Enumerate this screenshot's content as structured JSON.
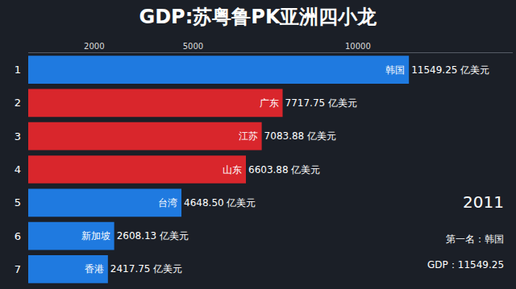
{
  "chart_data": {
    "type": "bar",
    "orientation": "horizontal",
    "title": "GDP:苏粤鲁PK亚洲四小龙",
    "categories": [
      "1",
      "2",
      "3",
      "4",
      "5",
      "6",
      "7"
    ],
    "names": [
      "韩国",
      "广东",
      "江苏",
      "山东",
      "台湾",
      "新加坡",
      "香港"
    ],
    "values": [
      11549.25,
      7717.75,
      7083.88,
      6603.88,
      4648.5,
      2608.13,
      2417.75
    ],
    "value_labels": [
      "11549.25 亿美元",
      "7717.75 亿美元",
      "7083.88 亿美元",
      "6603.88 亿美元",
      "4648.50 亿美元",
      "2608.13 亿美元",
      "2417.75 亿美元"
    ],
    "colors": [
      "#1f7ae0",
      "#d9262c",
      "#d9262c",
      "#d9262c",
      "#1f7ae0",
      "#1f7ae0",
      "#1f7ae0"
    ],
    "xlim": [
      0,
      14700
    ],
    "xticks": [
      2000,
      5000,
      10000
    ],
    "grid": false,
    "data_labels": true,
    "annotations": [
      "2011",
      "第一名：韩国",
      "GDP：11549.25"
    ]
  }
}
